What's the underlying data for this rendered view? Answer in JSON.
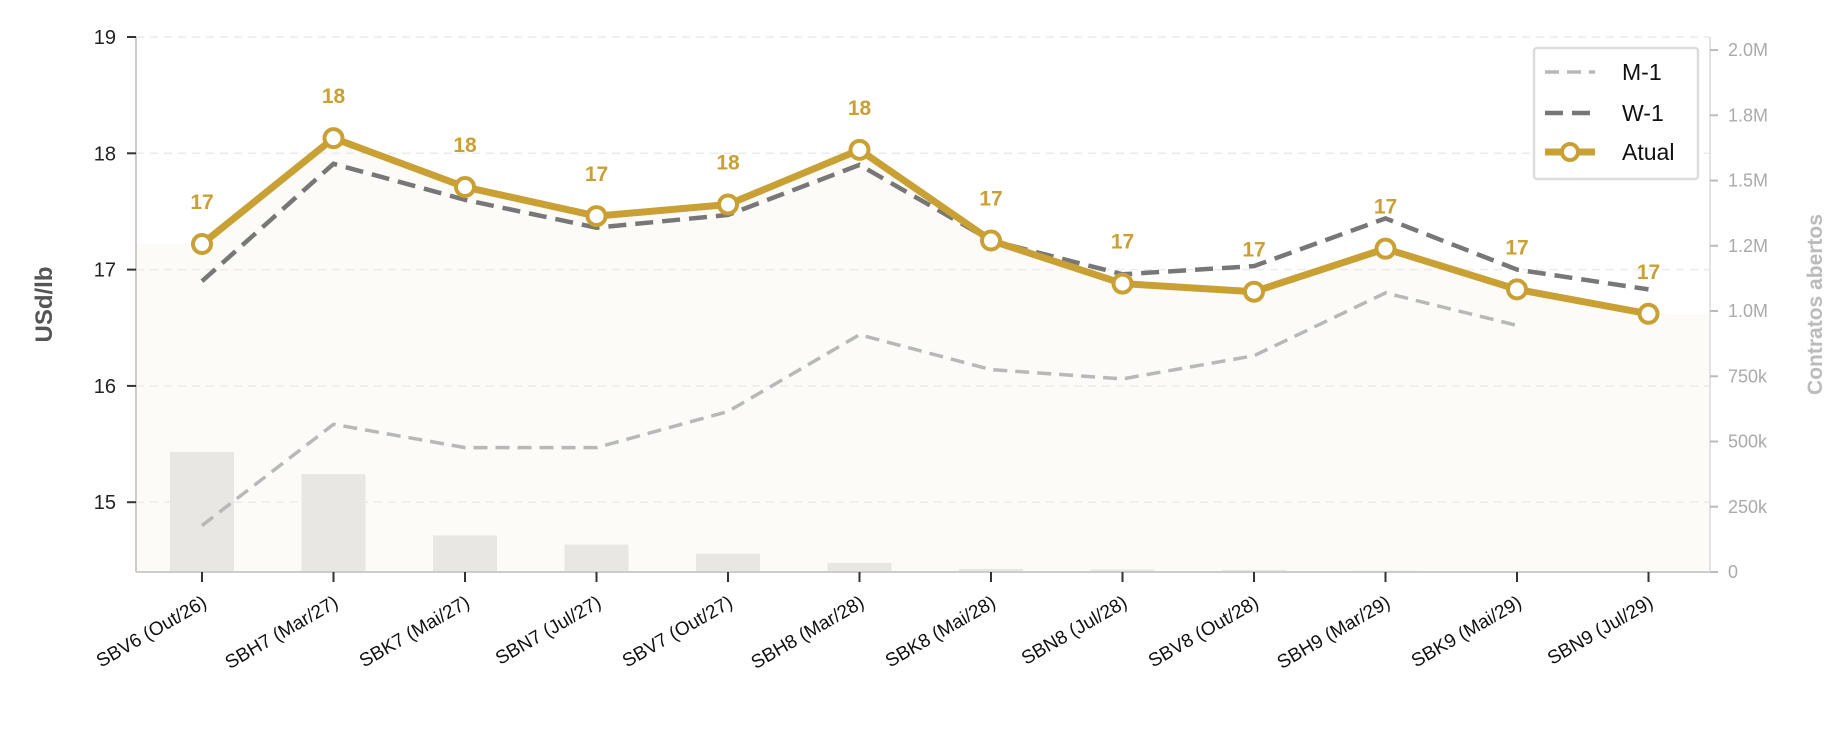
{
  "chart_data": {
    "type": "line",
    "categories": [
      "SBV6 (Out/26)",
      "SBH7 (Mar/27)",
      "SBK7 (Mai/27)",
      "SBN7 (Jul/27)",
      "SBV7 (Out/27)",
      "SBH8 (Mar/28)",
      "SBK8 (Mai/28)",
      "SBN8 (Jul/28)",
      "SBV8 (Out/28)",
      "SBH9 (Mar/29)",
      "SBK9 (Mai/29)",
      "SBN9 (Jul/29)"
    ],
    "ylabel": "USd/lb",
    "y2label": "Contratos abertos",
    "ylim": [
      14.4,
      19.0
    ],
    "y2lim": [
      0,
      2050000
    ],
    "yticks": [
      15,
      16,
      17,
      18,
      19
    ],
    "y2ticks": [
      0,
      250000,
      500000,
      750000,
      1000000,
      1250000,
      1500000,
      1750000,
      2000000
    ],
    "y2ticklabels": [
      "0",
      "250k",
      "500k",
      "750k",
      "1.0M",
      "1.2M",
      "1.5M",
      "1.8M",
      "2.0M"
    ],
    "grid": true,
    "legend_position": "top-right",
    "series": [
      {
        "name": "M-1",
        "style": "dashed-light",
        "color": "#b5b5b5",
        "values": [
          14.8,
          15.67,
          15.47,
          15.47,
          15.78,
          16.44,
          16.14,
          16.06,
          16.26,
          16.8,
          16.52,
          null
        ]
      },
      {
        "name": "W-1",
        "style": "dashed-dark",
        "color": "#7a7a7a",
        "values": [
          16.9,
          17.91,
          17.6,
          17.36,
          17.47,
          17.9,
          17.25,
          16.96,
          17.03,
          17.44,
          17.0,
          16.83
        ]
      },
      {
        "name": "Atual",
        "style": "solid-marker",
        "color": "#c9a034",
        "values": [
          17.22,
          18.13,
          17.71,
          17.46,
          17.56,
          18.03,
          17.25,
          16.88,
          16.81,
          17.18,
          16.83,
          16.62
        ]
      }
    ],
    "data_labels": [
      "17",
      "18",
      "18",
      "17",
      "18",
      "18",
      "17",
      "17",
      "17",
      "17",
      "17",
      "17"
    ],
    "open_interest": [
      460000,
      375000,
      140000,
      105000,
      70000,
      35000,
      12000,
      10000,
      8000,
      5000,
      3000,
      2000
    ],
    "colors": {
      "accent": "#c9a034",
      "band": "#fcfbf7",
      "bars": "#e8e7e3",
      "grid": "#ebebeb",
      "axis": "#cccccc"
    }
  }
}
